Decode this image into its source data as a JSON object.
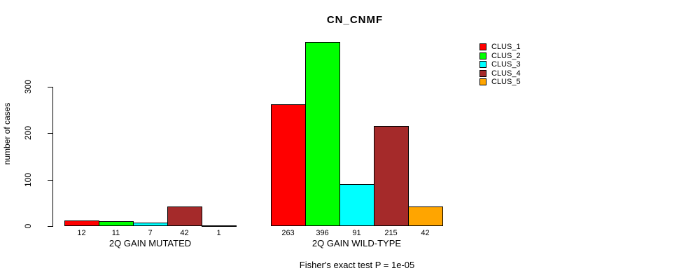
{
  "chart": {
    "title": "CN_CNMF",
    "ylabel": "number of cases",
    "footer": "Fisher's exact test P = 1e-05"
  },
  "chart_data": {
    "type": "bar",
    "title": "CN_CNMF",
    "xlabel": "",
    "ylabel": "number of cases",
    "categories": [
      "2Q GAIN MUTATED",
      "2Q GAIN WILD-TYPE"
    ],
    "series": [
      {
        "name": "CLUS_1",
        "color": "#ff0000",
        "values": [
          12,
          263
        ]
      },
      {
        "name": "CLUS_2",
        "color": "#00ff00",
        "values": [
          11,
          396
        ]
      },
      {
        "name": "CLUS_3",
        "color": "#00ffff",
        "values": [
          7,
          91
        ]
      },
      {
        "name": "CLUS_4",
        "color": "#a52a2a",
        "values": [
          42,
          215
        ]
      },
      {
        "name": "CLUS_5",
        "color": "#ffa500",
        "values": [
          1,
          42
        ]
      }
    ],
    "bar_value_labels": [
      [
        "12",
        "11",
        "7",
        "42",
        "1"
      ],
      [
        "263",
        "396",
        "91",
        "215",
        "42"
      ]
    ],
    "yticks": [
      0,
      100,
      200,
      300
    ],
    "ylim": [
      0,
      400
    ],
    "grid": false,
    "legend_position": "right",
    "annotation": "Fisher's exact test P = 1e-05"
  }
}
